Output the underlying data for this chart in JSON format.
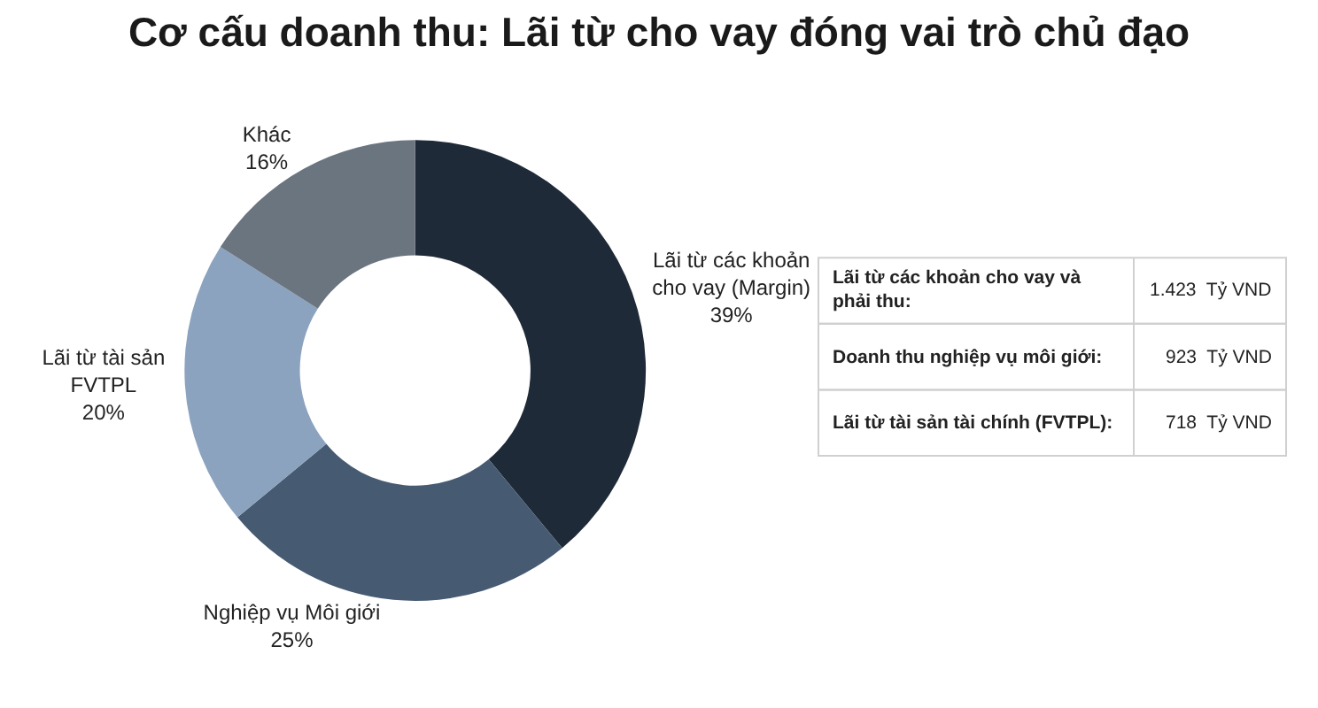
{
  "chart_data": [
    {
      "type": "donut",
      "title": "Cơ cấu doanh thu: Lãi từ cho vay đóng vai trò chủ đạo",
      "categories": [
        "Lãi từ các khoản\ncho vay (Margin)",
        "Nghiệp vụ Môi giới",
        "Lãi từ tài sản\nFVTPL",
        "Khác"
      ],
      "values": [
        39,
        25,
        20,
        16
      ],
      "value_labels": [
        "39%",
        "25%",
        "20%",
        "16%"
      ],
      "colors": [
        "#1f2a38",
        "#465a72",
        "#8ba3be",
        "#6b7580"
      ]
    },
    {
      "type": "other",
      "annotations": [
        "Lãi từ các khoản cho vay và\nphải thu:",
        "1.423  Tỷ VND",
        "Doanh thu nghiệp vụ môi giới:",
        "923  Tỷ VND",
        "Lãi từ tài sản tài chính (FVTPL):",
        "718  Tỷ VND"
      ]
    }
  ]
}
